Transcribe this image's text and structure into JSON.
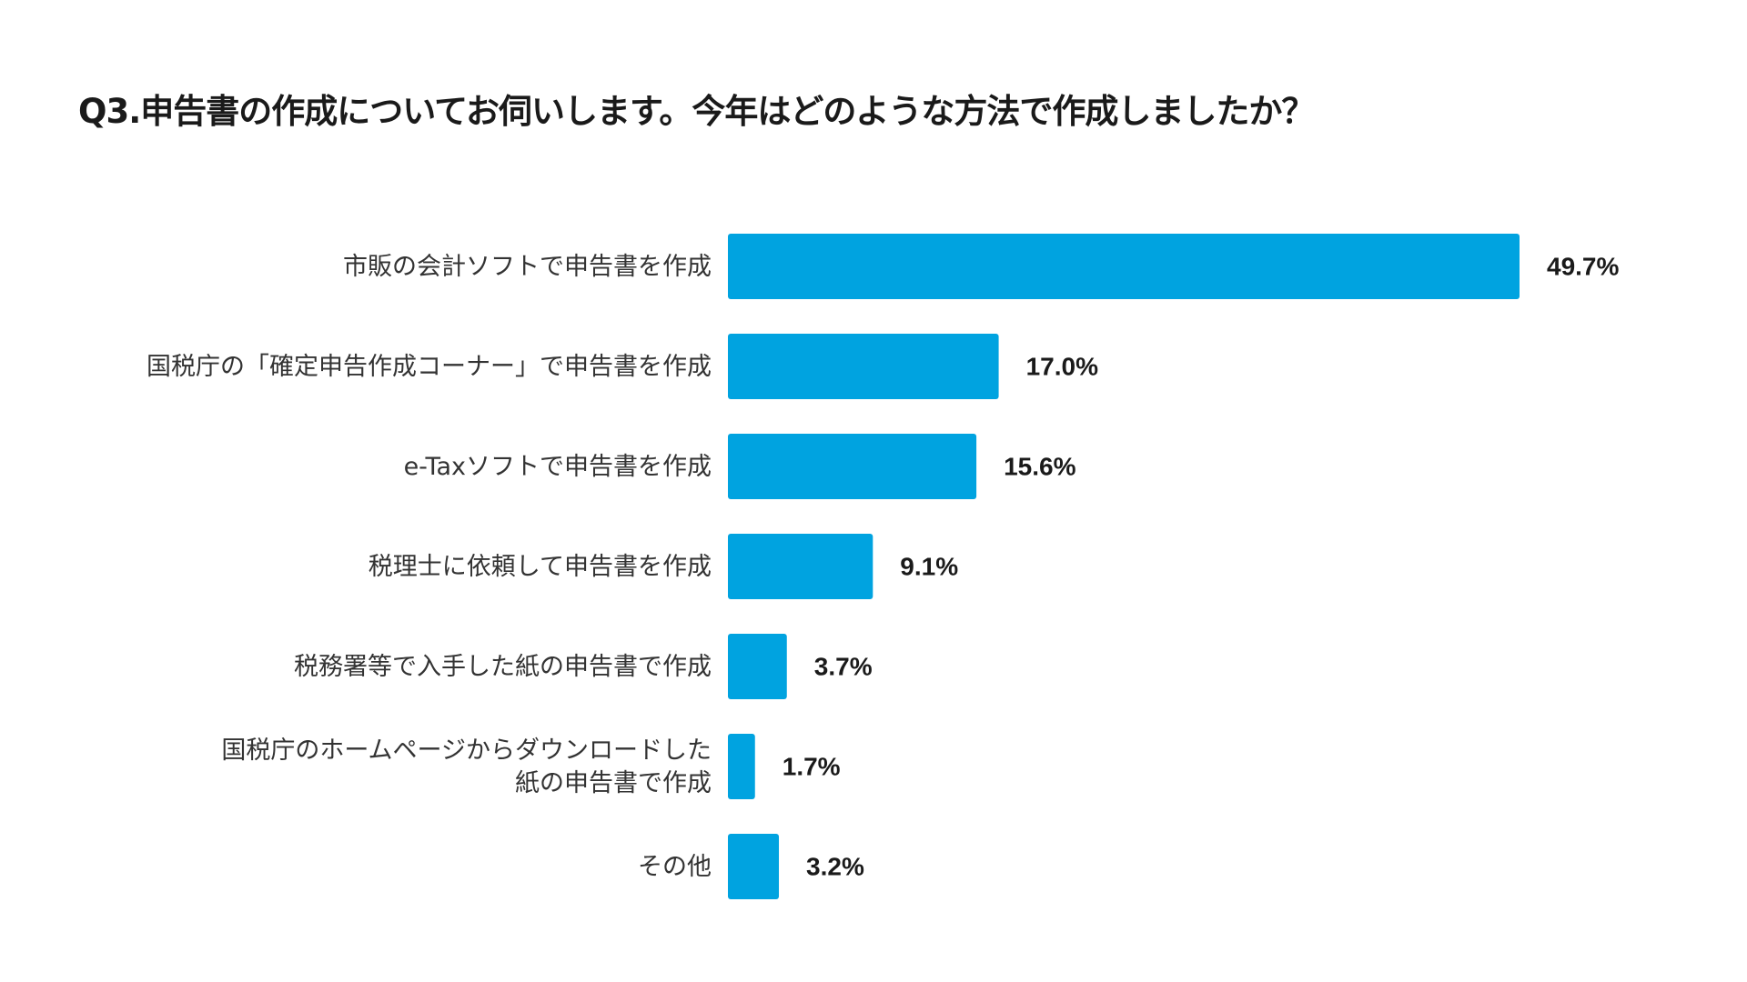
{
  "title": "Q3.申告書の作成についてお伺いします。今年はどのような方法で作成しましたか？",
  "chart_data": {
    "type": "bar",
    "orientation": "horizontal",
    "title": "Q3.申告書の作成についてお伺いします。今年はどのような方法で作成しましたか？",
    "categories": [
      [
        "市販の会計ソフトで申告書を作成"
      ],
      [
        "国税庁の「確定申告作成コーナー」で申告書を作成"
      ],
      [
        "e-Taxソフトで申告書を作成"
      ],
      [
        "税理士に依頼して申告書を作成"
      ],
      [
        "税務署等で入手した紙の申告書で作成"
      ],
      [
        "国税庁のホームページからダウンロードした",
        "紙の申告書で作成"
      ],
      [
        "その他"
      ]
    ],
    "values": [
      49.7,
      17.0,
      15.6,
      9.1,
      3.7,
      1.7,
      3.2
    ],
    "value_labels": [
      "49.7%",
      "17.0%",
      "15.6%",
      "9.1%",
      "3.7%",
      "1.7%",
      "3.2%"
    ],
    "unit": "%",
    "bar_color": "#00a3e0",
    "grid": false,
    "legend": "none"
  }
}
